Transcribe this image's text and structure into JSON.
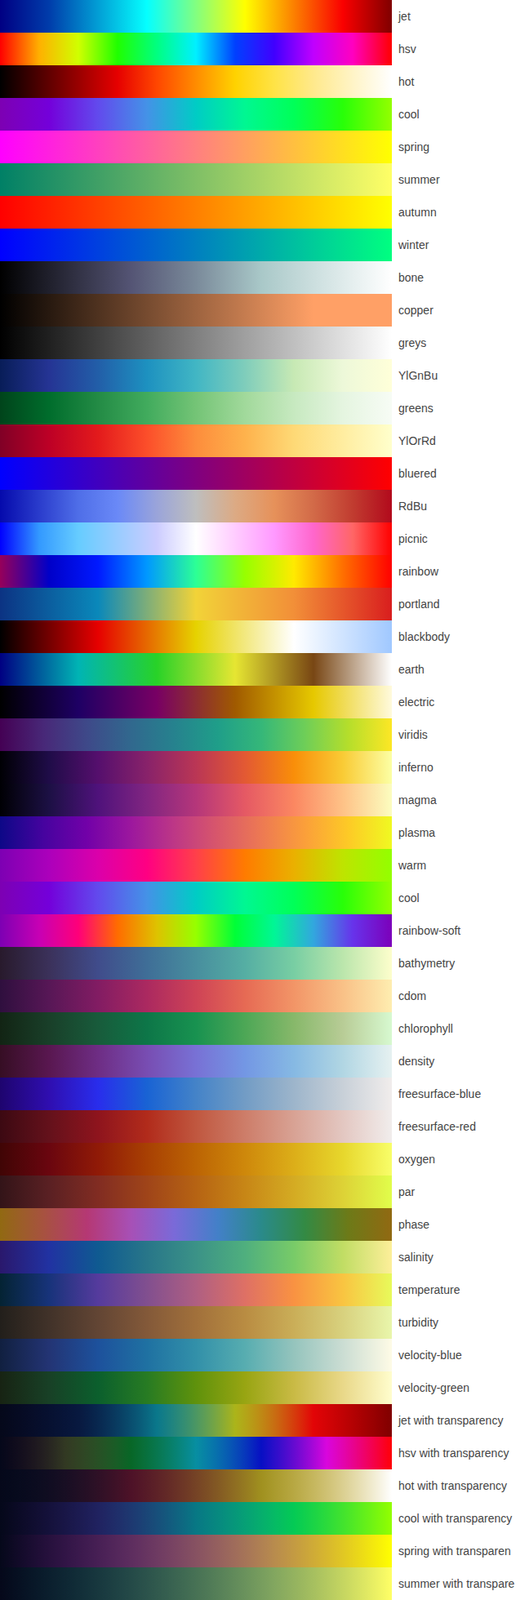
{
  "chart_data": {
    "type": "colormap",
    "tick_labels": "y",
    "colormaps": [
      {
        "name": "jet",
        "colors": [
          "#000083",
          "#003caa",
          "#029ed5",
          "#05ffff",
          "#82ff80",
          "#ffff00",
          "#fc8000",
          "#fa0000",
          "#800000"
        ]
      },
      {
        "name": "hsv",
        "colors": [
          "#ff0000",
          "#ffb000",
          "#d0ff00",
          "#20ff00",
          "#00ff80",
          "#00f0ff",
          "#0040ff",
          "#4000ff",
          "#c000ff",
          "#ff00c0",
          "#ff0000"
        ]
      },
      {
        "name": "hot",
        "colors": [
          "#000000",
          "#4d0000",
          "#990000",
          "#e60000",
          "#ff4600",
          "#ff8c00",
          "#ffd200",
          "#ffe346",
          "#ffe98c",
          "#fff4c6",
          "#ffffff"
        ]
      },
      {
        "name": "cool",
        "colors": [
          "#7d00b3",
          "#7400da",
          "#624aed",
          "#4492e7",
          "#00ccc5",
          "#00f792",
          "#00ff58",
          "#28ff08",
          "#93ff00"
        ]
      },
      {
        "name": "spring",
        "colors": [
          "#ff00ff",
          "#ffff00"
        ]
      },
      {
        "name": "summer",
        "colors": [
          "#008066",
          "#ffff66"
        ]
      },
      {
        "name": "autumn",
        "colors": [
          "#ff0000",
          "#ffff00"
        ]
      },
      {
        "name": "winter",
        "colors": [
          "#0000ff",
          "#00ff80"
        ]
      },
      {
        "name": "bone",
        "colors": [
          "#000000",
          "#2a2a3a",
          "#545474",
          "#7a8a9a",
          "#a9c8c8",
          "#d4e4e4",
          "#ffffff"
        ]
      },
      {
        "name": "copper",
        "colors": [
          "#000000",
          "#3f2819",
          "#7e5033",
          "#bd774c",
          "#ffa066",
          "#ffa066"
        ]
      },
      {
        "name": "greys",
        "colors": [
          "#000000",
          "#ffffff"
        ]
      },
      {
        "name": "YlGnBu",
        "colors": [
          "#081d58",
          "#253494",
          "#225ea8",
          "#1d91c0",
          "#41b6c4",
          "#7fcdbb",
          "#c7e9b4",
          "#edf8d9",
          "#ffffd9"
        ]
      },
      {
        "name": "greens",
        "colors": [
          "#00441b",
          "#006d2c",
          "#238b45",
          "#41ab5d",
          "#74c476",
          "#a1d99b",
          "#c7e9c0",
          "#e5f5e0",
          "#f7fcf5"
        ]
      },
      {
        "name": "YlOrRd",
        "colors": [
          "#800026",
          "#bd0026",
          "#e31a1c",
          "#fc4e2a",
          "#fd8d3c",
          "#feb24c",
          "#fed976",
          "#ffeda0",
          "#ffffcc"
        ]
      },
      {
        "name": "bluered",
        "colors": [
          "#0000ff",
          "#ff0000"
        ]
      },
      {
        "name": "RdBu",
        "colors": [
          "#050aac",
          "#2a3ccc",
          "#4f6ee8",
          "#6a89f7",
          "#9aa4da",
          "#bebebe",
          "#dcaa84",
          "#e6915a",
          "#d26a48",
          "#c13c30",
          "#b20a1c"
        ]
      },
      {
        "name": "picnic",
        "colors": [
          "#0000ff",
          "#3399ff",
          "#66ccff",
          "#99ccff",
          "#ccccff",
          "#ffffff",
          "#ffccff",
          "#ff99ff",
          "#ff66cc",
          "#ff6666",
          "#ff0000"
        ]
      },
      {
        "name": "rainbow",
        "colors": [
          "#96005a",
          "#0000c8",
          "#0019ff",
          "#0098ff",
          "#2cff96",
          "#97ff00",
          "#ffea00",
          "#ff6f00",
          "#ff0000"
        ]
      },
      {
        "name": "portland",
        "colors": [
          "#0c3383",
          "#0a88ba",
          "#f2d338",
          "#f28f38",
          "#d91e1e"
        ]
      },
      {
        "name": "blackbody",
        "colors": [
          "#000000",
          "#e60000",
          "#e6d200",
          "#ffffff",
          "#a0c8ff"
        ]
      },
      {
        "name": "earth",
        "colors": [
          "#000082",
          "#00b4b4",
          "#28d228",
          "#e6e632",
          "#784614",
          "#ffffff"
        ]
      },
      {
        "name": "electric",
        "colors": [
          "#000000",
          "#1e0064",
          "#780064",
          "#a05a00",
          "#e6c800",
          "#fffadc"
        ]
      },
      {
        "name": "viridis",
        "colors": [
          "#440154",
          "#482878",
          "#3e4989",
          "#31688e",
          "#26828e",
          "#1f9e89",
          "#35b779",
          "#6ece58",
          "#b5de2b",
          "#fde725"
        ]
      },
      {
        "name": "inferno",
        "colors": [
          "#000004",
          "#1f0c48",
          "#550f6d",
          "#88226a",
          "#ba3655",
          "#e35933",
          "#f98e09",
          "#f9cb35",
          "#fcffa4"
        ]
      },
      {
        "name": "magma",
        "colors": [
          "#000004",
          "#1c1044",
          "#4f127b",
          "#812581",
          "#b5367a",
          "#e55964",
          "#fb8761",
          "#fec287",
          "#fcfdbf"
        ]
      },
      {
        "name": "plasma",
        "colors": [
          "#0d0887",
          "#46039f",
          "#7201a8",
          "#9c179e",
          "#bd3786",
          "#d8576b",
          "#ed7953",
          "#fb9f3a",
          "#fdca26",
          "#f0f921"
        ]
      },
      {
        "name": "warm",
        "colors": [
          "#7d00b3",
          "#ac00bb",
          "#db00aa",
          "#ff0082",
          "#ff3f4a",
          "#ff7b00",
          "#eab000",
          "#bee400",
          "#93ff00"
        ]
      },
      {
        "name": "cool",
        "colors": [
          "#7d00b3",
          "#7400da",
          "#624aed",
          "#4492e7",
          "#00ccc5",
          "#00f792",
          "#00ff58",
          "#28ff08",
          "#93ff00"
        ]
      },
      {
        "name": "rainbow-soft",
        "colors": [
          "#7d00b3",
          "#c700b4",
          "#ff0079",
          "#ff6c00",
          "#dec200",
          "#96ff00",
          "#00ff37",
          "#00f696",
          "#32a7de",
          "#6733eb",
          "#7c00ba"
        ]
      },
      {
        "name": "bathymetry",
        "colors": [
          "#281a2c",
          "#3b315a",
          "#404c8b",
          "#3f6e97",
          "#488e9e",
          "#55aea3",
          "#78cea3",
          "#bbe6ac",
          "#fdfecc"
        ]
      },
      {
        "name": "cdom",
        "colors": [
          "#2f0f3e",
          "#571756",
          "#821c63",
          "#ab2960",
          "#ce4356",
          "#e66a54",
          "#f29567",
          "#f9c187",
          "#feedb0"
        ]
      },
      {
        "name": "chlorophyll",
        "colors": [
          "#122414",
          "#193f29",
          "#185b3b",
          "#0d7648",
          "#189250",
          "#4da756",
          "#87b86a",
          "#b8cc96",
          "#d7f9d0"
        ]
      },
      {
        "name": "density",
        "colors": [
          "#360e24",
          "#591750",
          "#6e2d84",
          "#784db2",
          "#7871d5",
          "#7397e4",
          "#86b9e3",
          "#b1d6e3",
          "#e6f1f1"
        ]
      },
      {
        "name": "freesurface-blue",
        "colors": [
          "#1e046e",
          "#2f0eb0",
          "#292dec",
          "#1963d4",
          "#4483c8",
          "#729cc5",
          "#9db5cb",
          "#c8d0d8",
          "#f1edec"
        ]
      },
      {
        "name": "freesurface-red",
        "colors": [
          "#3c0912",
          "#64111b",
          "#8e141d",
          "#b12b1b",
          "#c0573f",
          "#cd7d69",
          "#d8a294",
          "#e3c7c1",
          "#f1edec"
        ]
      },
      {
        "name": "oxygen",
        "colors": [
          "#400505",
          "#6a060f",
          "#901a07",
          "#a84003",
          "#bc6404",
          "#ce880b",
          "#dcae19",
          "#e7d72c",
          "#f8fe69"
        ]
      },
      {
        "name": "par",
        "colors": [
          "#331418",
          "#5a2023",
          "#812c22",
          "#9f4419",
          "#b66313",
          "#c78616",
          "#d4ab23",
          "#ddd236",
          "#e1fd4b"
        ]
      },
      {
        "name": "phase",
        "colors": [
          "#916912",
          "#a75240",
          "#b53874",
          "#a750b6",
          "#7a6ad8",
          "#4380c8",
          "#2a8a8a",
          "#338a44",
          "#6d7a18",
          "#916912"
        ]
      },
      {
        "name": "salinity",
        "colors": [
          "#2a186c",
          "#2132a2",
          "#0f5a91",
          "#287689",
          "#3b9287",
          "#4faf7e",
          "#78cb68",
          "#c1dd64",
          "#fdef9a"
        ]
      },
      {
        "name": "temperature",
        "colors": [
          "#042333",
          "#17337a",
          "#553b9d",
          "#814f8f",
          "#af5f82",
          "#de7065",
          "#f99242",
          "#f9c441",
          "#e8fa5b"
        ]
      },
      {
        "name": "turbidity",
        "colors": [
          "#221f1b",
          "#413229",
          "#624534",
          "#835939",
          "#a1703b",
          "#b98c42",
          "#caae58",
          "#d8d17e",
          "#e9f6ab"
        ]
      },
      {
        "name": "velocity-blue",
        "colors": [
          "#112040",
          "#233474",
          "#1d519c",
          "#1f71a2",
          "#3290a9",
          "#57adb0",
          "#95c4bd",
          "#cbddd3",
          "#fefbe6"
        ]
      },
      {
        "name": "velocity-green",
        "colors": [
          "#172313",
          "#184026",
          "#0b5f2d",
          "#277b23",
          "#5f920c",
          "#98a512",
          "#c9ba45",
          "#e9d889",
          "#fffdcd"
        ]
      },
      {
        "name": "jet with transparency",
        "colors": [
          "rgba(0,0,131,0)",
          "rgba(0,60,170,0.15)",
          "rgba(5,255,255,0.4)",
          "rgba(255,255,0,0.65)",
          "rgba(250,0,0,0.9)",
          "rgba(128,0,0,1)"
        ]
      },
      {
        "name": "hsv with transparency",
        "colors": [
          "rgba(255,0,0,0)",
          "rgba(253,255,2,0.17)",
          "rgba(0,252,4,0.34)",
          "rgba(1,249,255,0.5)",
          "rgba(2,0,253,0.67)",
          "rgba(255,0,251,0.84)",
          "rgba(255,0,6,1)"
        ]
      },
      {
        "name": "hot with transparency",
        "colors": [
          "rgba(0,0,0,0)",
          "rgba(230,0,0,0.3)",
          "rgba(255,210,0,0.6)",
          "rgba(255,255,255,1)"
        ]
      },
      {
        "name": "cool with transparency",
        "colors": [
          "rgba(125,0,179,0)",
          "rgba(98,74,237,0.25)",
          "rgba(0,204,197,0.5)",
          "rgba(0,255,88,0.75)",
          "rgba(147,255,0,1)"
        ]
      },
      {
        "name": "spring with transparen",
        "colors": [
          "rgba(255,0,255,0)",
          "rgba(255,255,0,1)"
        ]
      },
      {
        "name": "summer with transpare",
        "colors": [
          "rgba(0,128,102,0)",
          "rgba(255,255,102,1)"
        ]
      }
    ]
  }
}
